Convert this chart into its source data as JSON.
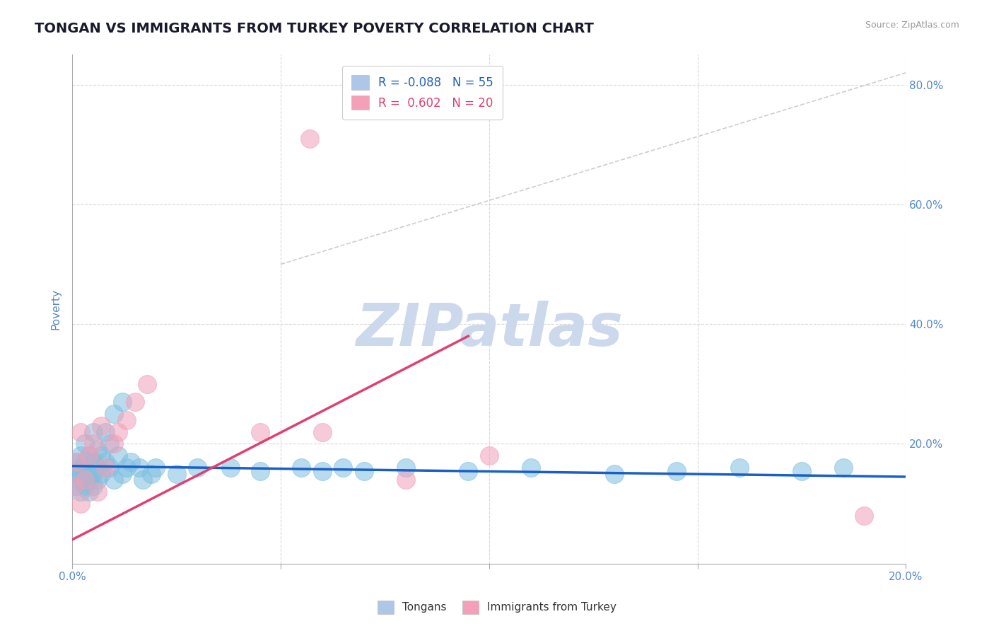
{
  "title": "TONGAN VS IMMIGRANTS FROM TURKEY POVERTY CORRELATION CHART",
  "source": "Source: ZipAtlas.com",
  "ylabel_label": "Poverty",
  "xlim": [
    0.0,
    0.2
  ],
  "ylim": [
    0.0,
    0.85
  ],
  "watermark": "ZIPatlas",
  "blue_scatter_x": [
    0.0005,
    0.001,
    0.001,
    0.001,
    0.002,
    0.002,
    0.002,
    0.002,
    0.003,
    0.003,
    0.003,
    0.003,
    0.004,
    0.004,
    0.004,
    0.005,
    0.005,
    0.005,
    0.005,
    0.006,
    0.006,
    0.006,
    0.007,
    0.007,
    0.008,
    0.008,
    0.009,
    0.009,
    0.01,
    0.01,
    0.011,
    0.012,
    0.012,
    0.013,
    0.014,
    0.016,
    0.017,
    0.019,
    0.02,
    0.025,
    0.03,
    0.038,
    0.045,
    0.055,
    0.06,
    0.065,
    0.07,
    0.08,
    0.095,
    0.11,
    0.13,
    0.145,
    0.16,
    0.175,
    0.185
  ],
  "blue_scatter_y": [
    0.155,
    0.13,
    0.15,
    0.17,
    0.12,
    0.14,
    0.16,
    0.18,
    0.13,
    0.15,
    0.17,
    0.2,
    0.12,
    0.14,
    0.18,
    0.13,
    0.15,
    0.17,
    0.22,
    0.14,
    0.16,
    0.19,
    0.15,
    0.18,
    0.17,
    0.22,
    0.16,
    0.2,
    0.14,
    0.25,
    0.18,
    0.15,
    0.27,
    0.16,
    0.17,
    0.16,
    0.14,
    0.15,
    0.16,
    0.15,
    0.16,
    0.16,
    0.155,
    0.16,
    0.155,
    0.16,
    0.155,
    0.16,
    0.155,
    0.16,
    0.15,
    0.155,
    0.16,
    0.155,
    0.16
  ],
  "pink_scatter_x": [
    0.0005,
    0.001,
    0.002,
    0.002,
    0.003,
    0.004,
    0.005,
    0.006,
    0.007,
    0.008,
    0.01,
    0.011,
    0.013,
    0.015,
    0.018,
    0.045,
    0.06,
    0.08,
    0.1,
    0.19
  ],
  "pink_scatter_y": [
    0.13,
    0.17,
    0.1,
    0.22,
    0.14,
    0.18,
    0.2,
    0.12,
    0.23,
    0.16,
    0.2,
    0.22,
    0.24,
    0.27,
    0.3,
    0.22,
    0.22,
    0.14,
    0.18,
    0.08
  ],
  "pink_outlier_x": [
    0.057
  ],
  "pink_outlier_y": [
    0.71
  ],
  "blue_line_x": [
    0.0,
    0.2
  ],
  "blue_line_y": [
    0.163,
    0.145
  ],
  "pink_line_x": [
    0.0,
    0.095
  ],
  "pink_line_y": [
    0.04,
    0.38
  ],
  "ref_line_x": [
    0.05,
    0.2
  ],
  "ref_line_y": [
    0.5,
    0.82
  ],
  "blue_color": "#7fbfdf",
  "pink_color": "#f0a0b8",
  "blue_scatter_edge": "#7fbfdf",
  "pink_scatter_edge": "#f0a0b8",
  "blue_line_color": "#1a5fc8",
  "pink_line_color": "#e04070",
  "ref_line_color": "#c8c8c8",
  "background_color": "#ffffff",
  "title_color": "#1a1a2e",
  "axis_color": "#5588cc",
  "grid_color": "#d0d0d0",
  "watermark_color": "#ccd8ec",
  "legend_blue_text": "#2060c0",
  "legend_pink_text": "#e04070",
  "legend_blue_patch": "#aec6e8",
  "legend_pink_patch": "#f4a0b8"
}
